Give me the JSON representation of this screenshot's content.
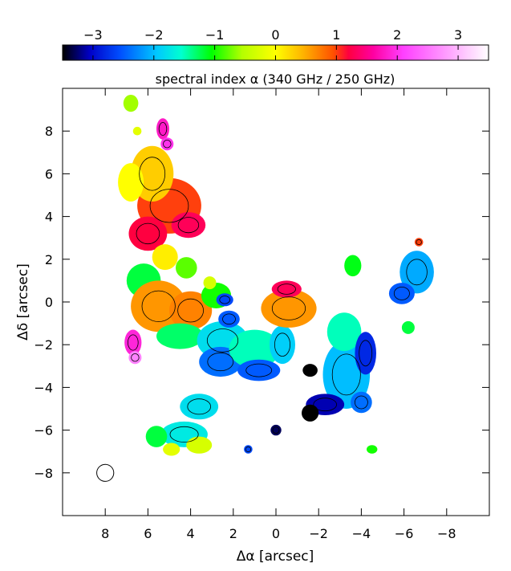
{
  "chart_data": {
    "type": "heatmap",
    "colorbar": {
      "label": "spectral index α (340 GHz / 250 GHz)",
      "range": [
        -3.5,
        3.5
      ],
      "ticks": [
        -3,
        -2,
        -1,
        0,
        1,
        2,
        3
      ],
      "tick_labels": [
        "−3",
        "−2",
        "−1",
        "0",
        "1",
        "2",
        "3"
      ],
      "stops": [
        {
          "v": -3.5,
          "c": "#000000"
        },
        {
          "v": -3.05,
          "c": "#0000c8"
        },
        {
          "v": -2.55,
          "c": "#0050ff"
        },
        {
          "v": -1.95,
          "c": "#00c8ff"
        },
        {
          "v": -1.55,
          "c": "#00ffd0"
        },
        {
          "v": -1.05,
          "c": "#00ff00"
        },
        {
          "v": -0.55,
          "c": "#b4ff00"
        },
        {
          "v": 0.0,
          "c": "#ffff00"
        },
        {
          "v": 0.45,
          "c": "#ffb400"
        },
        {
          "v": 0.95,
          "c": "#ff5000"
        },
        {
          "v": 1.2,
          "c": "#ff0040"
        },
        {
          "v": 1.6,
          "c": "#ff00a0"
        },
        {
          "v": 2.1,
          "c": "#ff40ff"
        },
        {
          "v": 2.8,
          "c": "#ff9cff"
        },
        {
          "v": 3.5,
          "c": "#ffffff"
        }
      ]
    },
    "xlabel": "Δα [arcsec]",
    "ylabel": "Δδ [arcsec]",
    "xlim": [
      10,
      -10
    ],
    "ylim": [
      -10,
      10
    ],
    "xticks": [
      8,
      6,
      4,
      2,
      0,
      -2,
      -4,
      -6,
      -8
    ],
    "xtick_labels": [
      "8",
      "6",
      "4",
      "2",
      "0",
      "−2",
      "−4",
      "−6",
      "−8"
    ],
    "yticks": [
      8,
      6,
      4,
      2,
      0,
      -2,
      -4,
      -6,
      -8
    ],
    "ytick_labels": [
      "8",
      "6",
      "4",
      "2",
      "0",
      "−2",
      "−4",
      "−6",
      "−8"
    ],
    "beam": {
      "x": 8,
      "y": -8,
      "diameter": 0.8
    },
    "blobs": [
      {
        "x": 5.0,
        "y": 4.5,
        "rx": 1.5,
        "ry": 1.3,
        "alpha": 1.0
      },
      {
        "x": 6.0,
        "y": 3.2,
        "rx": 0.9,
        "ry": 0.8,
        "alpha": 1.2
      },
      {
        "x": 5.8,
        "y": 6.0,
        "rx": 1.0,
        "ry": 1.3,
        "alpha": 0.3
      },
      {
        "x": 6.8,
        "y": 5.6,
        "rx": 0.6,
        "ry": 0.9,
        "alpha": 0.0
      },
      {
        "x": 6.5,
        "y": 8.0,
        "rx": 0.2,
        "ry": 0.2,
        "alpha": -0.2
      },
      {
        "x": 4.1,
        "y": 3.6,
        "rx": 0.8,
        "ry": 0.6,
        "alpha": 1.3
      },
      {
        "x": 5.2,
        "y": 2.1,
        "rx": 0.6,
        "ry": 0.6,
        "alpha": 0.1
      },
      {
        "x": 4.2,
        "y": 1.6,
        "rx": 0.5,
        "ry": 0.5,
        "alpha": -0.8
      },
      {
        "x": 6.2,
        "y": 1.0,
        "rx": 0.8,
        "ry": 0.8,
        "alpha": -1.2
      },
      {
        "x": 5.5,
        "y": -0.2,
        "rx": 1.3,
        "ry": 1.2,
        "alpha": 0.6
      },
      {
        "x": 4.0,
        "y": -0.4,
        "rx": 1.0,
        "ry": 0.9,
        "alpha": 0.7
      },
      {
        "x": 2.8,
        "y": 0.3,
        "rx": 0.7,
        "ry": 0.6,
        "alpha": -1.0
      },
      {
        "x": 4.5,
        "y": -1.6,
        "rx": 1.1,
        "ry": 0.6,
        "alpha": -1.3
      },
      {
        "x": 2.5,
        "y": -1.8,
        "rx": 1.2,
        "ry": 0.9,
        "alpha": -1.8
      },
      {
        "x": 2.6,
        "y": -2.8,
        "rx": 1.0,
        "ry": 0.7,
        "alpha": -2.4
      },
      {
        "x": 1.0,
        "y": -2.2,
        "rx": 1.2,
        "ry": 0.9,
        "alpha": -1.5
      },
      {
        "x": -0.3,
        "y": -2.0,
        "rx": 0.6,
        "ry": 0.9,
        "alpha": -1.9
      },
      {
        "x": 0.8,
        "y": -3.2,
        "rx": 1.0,
        "ry": 0.5,
        "alpha": -2.5
      },
      {
        "x": 2.2,
        "y": -0.8,
        "rx": 0.5,
        "ry": 0.4,
        "alpha": -2.5
      },
      {
        "x": 3.1,
        "y": 0.9,
        "rx": 0.3,
        "ry": 0.3,
        "alpha": -0.3
      },
      {
        "x": 2.4,
        "y": 0.1,
        "rx": 0.4,
        "ry": 0.3,
        "alpha": -2.6
      },
      {
        "x": 5.3,
        "y": 8.1,
        "rx": 0.3,
        "ry": 0.5,
        "alpha": 1.8
      },
      {
        "x": 5.1,
        "y": 7.4,
        "rx": 0.3,
        "ry": 0.3,
        "alpha": 2.0
      },
      {
        "x": 6.8,
        "y": 9.3,
        "rx": 0.35,
        "ry": 0.4,
        "alpha": -0.6
      },
      {
        "x": 6.7,
        "y": -1.9,
        "rx": 0.4,
        "ry": 0.6,
        "alpha": 1.9
      },
      {
        "x": 6.6,
        "y": -2.6,
        "rx": 0.3,
        "ry": 0.3,
        "alpha": 2.6
      },
      {
        "x": -0.6,
        "y": -0.3,
        "rx": 1.3,
        "ry": 0.9,
        "alpha": 0.6
      },
      {
        "x": -0.5,
        "y": 0.6,
        "rx": 0.7,
        "ry": 0.4,
        "alpha": 1.3
      },
      {
        "x": -3.3,
        "y": -3.4,
        "rx": 1.1,
        "ry": 1.6,
        "alpha": -2.0
      },
      {
        "x": -3.2,
        "y": -1.4,
        "rx": 0.8,
        "ry": 0.9,
        "alpha": -1.5
      },
      {
        "x": -4.2,
        "y": -2.4,
        "rx": 0.5,
        "ry": 1.0,
        "alpha": -2.8
      },
      {
        "x": -2.3,
        "y": -4.8,
        "rx": 0.9,
        "ry": 0.5,
        "alpha": -3.1
      },
      {
        "x": -1.6,
        "y": -5.2,
        "rx": 0.4,
        "ry": 0.4,
        "alpha": -3.5
      },
      {
        "x": -4.0,
        "y": -4.7,
        "rx": 0.5,
        "ry": 0.5,
        "alpha": -2.4
      },
      {
        "x": -6.6,
        "y": 1.4,
        "rx": 0.8,
        "ry": 1.0,
        "alpha": -2.1
      },
      {
        "x": -5.9,
        "y": 0.4,
        "rx": 0.6,
        "ry": 0.5,
        "alpha": -2.5
      },
      {
        "x": -6.7,
        "y": 2.8,
        "rx": 0.2,
        "ry": 0.2,
        "alpha": 1.0
      },
      {
        "x": -3.6,
        "y": 1.7,
        "rx": 0.4,
        "ry": 0.5,
        "alpha": -1.1
      },
      {
        "x": -6.2,
        "y": -1.2,
        "rx": 0.3,
        "ry": 0.3,
        "alpha": -1.2
      },
      {
        "x": 3.6,
        "y": -4.9,
        "rx": 0.9,
        "ry": 0.6,
        "alpha": -1.8
      },
      {
        "x": 4.3,
        "y": -6.2,
        "rx": 1.1,
        "ry": 0.6,
        "alpha": -1.7
      },
      {
        "x": 3.6,
        "y": -6.7,
        "rx": 0.6,
        "ry": 0.4,
        "alpha": -0.3
      },
      {
        "x": 4.9,
        "y": -6.9,
        "rx": 0.4,
        "ry": 0.3,
        "alpha": -0.2
      },
      {
        "x": 5.6,
        "y": -6.3,
        "rx": 0.5,
        "ry": 0.5,
        "alpha": -1.2
      },
      {
        "x": 1.3,
        "y": -6.9,
        "rx": 0.2,
        "ry": 0.2,
        "alpha": -2.6
      },
      {
        "x": 0.0,
        "y": -6.0,
        "rx": 0.25,
        "ry": 0.25,
        "alpha": -3.3
      },
      {
        "x": -4.5,
        "y": -6.9,
        "rx": 0.25,
        "ry": 0.2,
        "alpha": -1.0
      },
      {
        "x": -1.6,
        "y": -3.2,
        "rx": 0.35,
        "ry": 0.3,
        "alpha": -3.5
      }
    ]
  }
}
